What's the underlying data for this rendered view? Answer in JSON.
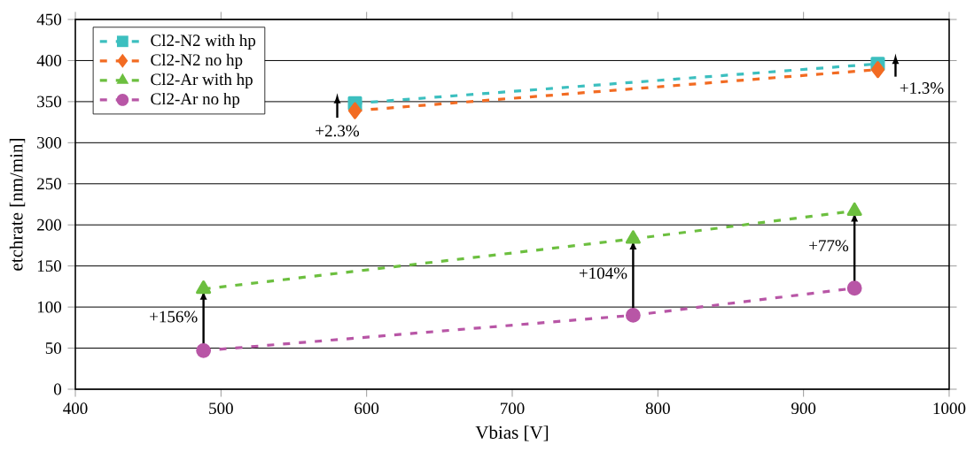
{
  "chart_data": {
    "type": "line",
    "xlabel": "Vbias [V]",
    "ylabel": "etchrate [nm/min]",
    "xlim": [
      400,
      1000
    ],
    "xticks": [
      400,
      500,
      600,
      700,
      800,
      900,
      1000
    ],
    "ylim": [
      0,
      450
    ],
    "yticks": [
      0,
      50,
      100,
      150,
      200,
      250,
      300,
      350,
      400,
      450
    ],
    "grid": "y",
    "legend": "top left",
    "line_style": "dashed",
    "series": [
      {
        "name": "Cl2-N2 with hp",
        "color": "#3cbfbf",
        "marker": "square",
        "x": [
          592,
          951
        ],
        "values": [
          348,
          396
        ]
      },
      {
        "name": "Cl2-N2 no hp",
        "color": "#f26b22",
        "marker": "diamond",
        "x": [
          592,
          951
        ],
        "values": [
          339,
          389
        ]
      },
      {
        "name": "Cl2-Ar with hp",
        "color": "#6cbf3f",
        "marker": "triangle",
        "x": [
          488,
          783,
          935
        ],
        "values": [
          122,
          183,
          217
        ]
      },
      {
        "name": "Cl2-Ar no hp",
        "color": "#b856a6",
        "marker": "circle",
        "x": [
          488,
          783,
          935
        ],
        "values": [
          47,
          90,
          123
        ]
      }
    ],
    "annotations": [
      "+2.3%",
      "+1.3%",
      {
        "text": "+156%",
        "x": 488,
        "y": 122
      },
      {
        "text": "+104%",
        "x": 783,
        "y": 183
      },
      {
        "text": "+77%",
        "x": 935,
        "y": 217
      }
    ]
  }
}
